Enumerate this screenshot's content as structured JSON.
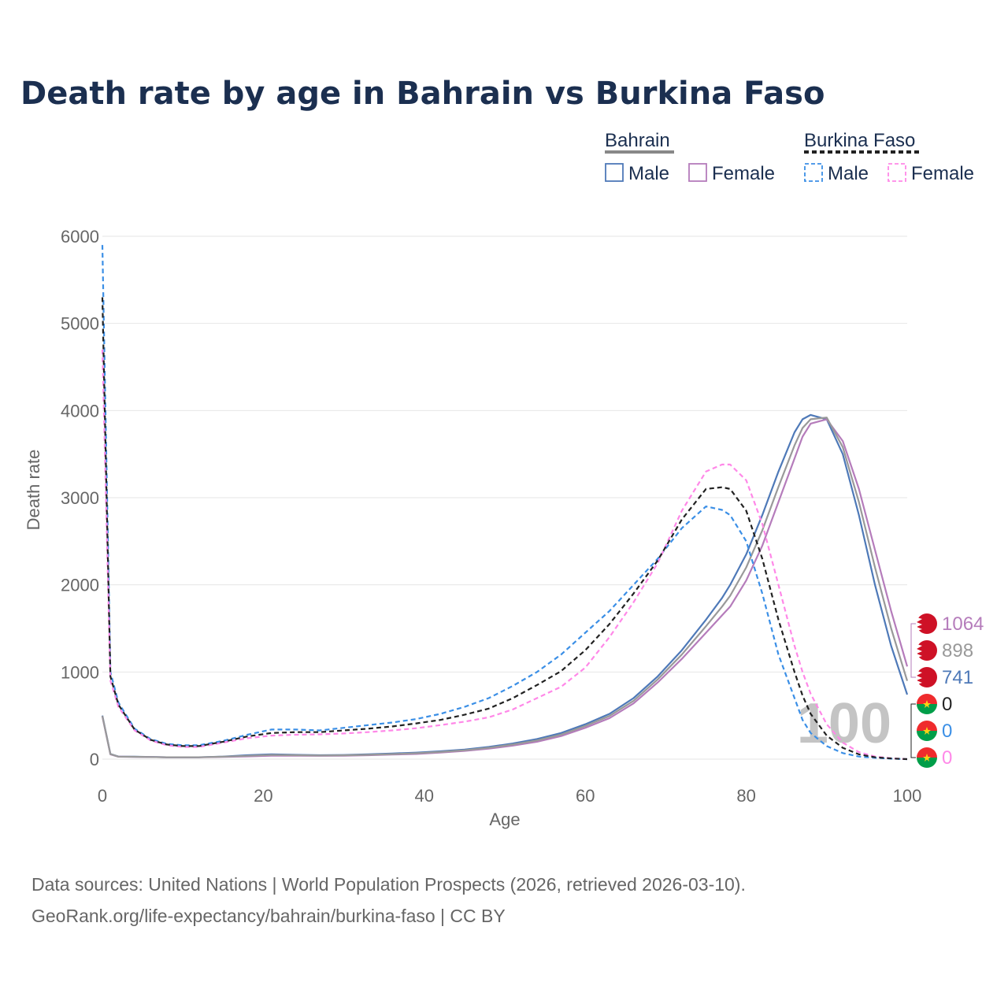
{
  "chart_data": {
    "type": "line",
    "title": "Death rate by age in Bahrain vs Burkina Faso",
    "xlabel": "Age",
    "ylabel": "Death rate",
    "xlim": [
      0,
      100
    ],
    "ylim": [
      0,
      6000
    ],
    "xticks": [
      "0",
      "20",
      "40",
      "60",
      "80",
      "100"
    ],
    "yticks": [
      "0",
      "1000",
      "2000",
      "3000",
      "4000",
      "5000",
      "6000"
    ],
    "grid": true,
    "x": [
      0,
      1,
      2,
      4,
      6,
      8,
      10,
      12,
      15,
      18,
      21,
      24,
      27,
      30,
      33,
      36,
      39,
      42,
      45,
      48,
      51,
      54,
      57,
      60,
      63,
      66,
      69,
      72,
      75,
      77,
      78,
      80,
      82,
      84,
      86,
      87,
      88,
      90,
      92,
      94,
      96,
      98,
      100
    ],
    "series": [
      {
        "name": "Bahrain Male",
        "country": "Bahrain",
        "sex": "Male",
        "color": "#4e79b8",
        "dash": "solid",
        "end_label": "",
        "values": [
          500,
          60,
          30,
          28,
          25,
          22,
          22,
          22,
          30,
          45,
          55,
          50,
          45,
          48,
          55,
          65,
          75,
          90,
          110,
          140,
          180,
          230,
          300,
          400,
          520,
          700,
          950,
          1250,
          1600,
          1850,
          2000,
          2350,
          2800,
          3300,
          3750,
          3900,
          3950,
          3900,
          3500,
          2800,
          2000,
          1300,
          741
        ]
      },
      {
        "name": "Bahrain Female",
        "country": "Bahrain",
        "sex": "Female",
        "color": "#b57cbb",
        "dash": "solid",
        "end_label": "1064",
        "values": [
          490,
          55,
          28,
          26,
          24,
          22,
          21,
          21,
          25,
          32,
          40,
          40,
          38,
          40,
          45,
          52,
          60,
          75,
          95,
          120,
          155,
          200,
          265,
          360,
          470,
          640,
          880,
          1150,
          1450,
          1650,
          1750,
          2050,
          2450,
          2950,
          3450,
          3700,
          3850,
          3900,
          3650,
          3100,
          2400,
          1700,
          1064
        ]
      },
      {
        "name": "Bahrain Total",
        "country": "Bahrain",
        "sex": "Total",
        "color": "#999999",
        "dash": "solid",
        "end_label": "898",
        "values": [
          495,
          58,
          29,
          27,
          24,
          22,
          22,
          22,
          28,
          38,
          48,
          45,
          42,
          44,
          50,
          58,
          68,
          82,
          102,
          130,
          168,
          215,
          282,
          380,
          495,
          670,
          915,
          1200,
          1525,
          1750,
          1875,
          2200,
          2625,
          3125,
          3600,
          3800,
          3900,
          3920,
          3580,
          2950,
          2200,
          1500,
          898
        ]
      },
      {
        "name": "Burkina Faso Male",
        "country": "Burkina Faso",
        "sex": "Male",
        "color": "#3b8fe6",
        "dash": "dashed",
        "end_label": "0",
        "values": [
          5900,
          1000,
          650,
          350,
          230,
          175,
          160,
          160,
          210,
          280,
          340,
          340,
          330,
          360,
          390,
          420,
          460,
          520,
          600,
          700,
          840,
          1000,
          1200,
          1450,
          1700,
          2000,
          2300,
          2650,
          2900,
          2860,
          2800,
          2500,
          1900,
          1200,
          700,
          450,
          300,
          150,
          70,
          30,
          15,
          5,
          0
        ]
      },
      {
        "name": "Burkina Faso Female",
        "country": "Burkina Faso",
        "sex": "Female",
        "color": "#ff88e8",
        "dash": "dashed",
        "end_label": "0",
        "values": [
          4700,
          900,
          600,
          330,
          215,
          160,
          140,
          140,
          190,
          240,
          270,
          280,
          285,
          295,
          310,
          330,
          355,
          390,
          430,
          480,
          570,
          700,
          830,
          1050,
          1400,
          1800,
          2250,
          2850,
          3300,
          3380,
          3380,
          3200,
          2700,
          2000,
          1300,
          1000,
          750,
          400,
          190,
          80,
          30,
          10,
          0
        ]
      },
      {
        "name": "Burkina Faso Total",
        "country": "Burkina Faso",
        "sex": "Total",
        "color": "#222222",
        "dash": "dashed",
        "end_label": "0",
        "values": [
          5300,
          950,
          625,
          340,
          222,
          168,
          150,
          150,
          200,
          260,
          300,
          310,
          310,
          330,
          350,
          375,
          410,
          450,
          510,
          580,
          700,
          850,
          1010,
          1250,
          1550,
          1900,
          2280,
          2750,
          3100,
          3120,
          3100,
          2850,
          2300,
          1600,
          1000,
          730,
          520,
          270,
          130,
          55,
          22,
          8,
          0
        ]
      }
    ],
    "legend": {
      "groups": [
        {
          "country": "Bahrain",
          "line_color": "#888888",
          "items": [
            {
              "label": "Male",
              "color": "#4e79b8"
            },
            {
              "label": "Female",
              "color": "#b57cbb"
            }
          ]
        },
        {
          "country": "Burkina Faso",
          "line_color": "#222222",
          "items": [
            {
              "label": "Male",
              "color": "#3b8fe6"
            },
            {
              "label": "Female",
              "color": "#ff88e8"
            }
          ]
        }
      ],
      "position": "top-right"
    },
    "end_labels": [
      {
        "value": "1064",
        "color": "#b57cbb",
        "flag": "bahrain"
      },
      {
        "value": "898",
        "color": "#999999",
        "flag": "bahrain"
      },
      {
        "value": "741",
        "color": "#4e79b8",
        "flag": "bahrain"
      },
      {
        "value": "0",
        "color": "#222222",
        "flag": "burkina-faso"
      },
      {
        "value": "0",
        "color": "#3b8fe6",
        "flag": "burkina-faso"
      },
      {
        "value": "0",
        "color": "#ff88e8",
        "flag": "burkina-faso"
      }
    ],
    "watermark_age": "100"
  },
  "source": {
    "line1": "Data sources: United Nations | World Population Prospects (2026, retrieved 2026-03-10).",
    "line2": "GeoRank.org/life-expectancy/bahrain/burkina-faso | CC BY"
  }
}
